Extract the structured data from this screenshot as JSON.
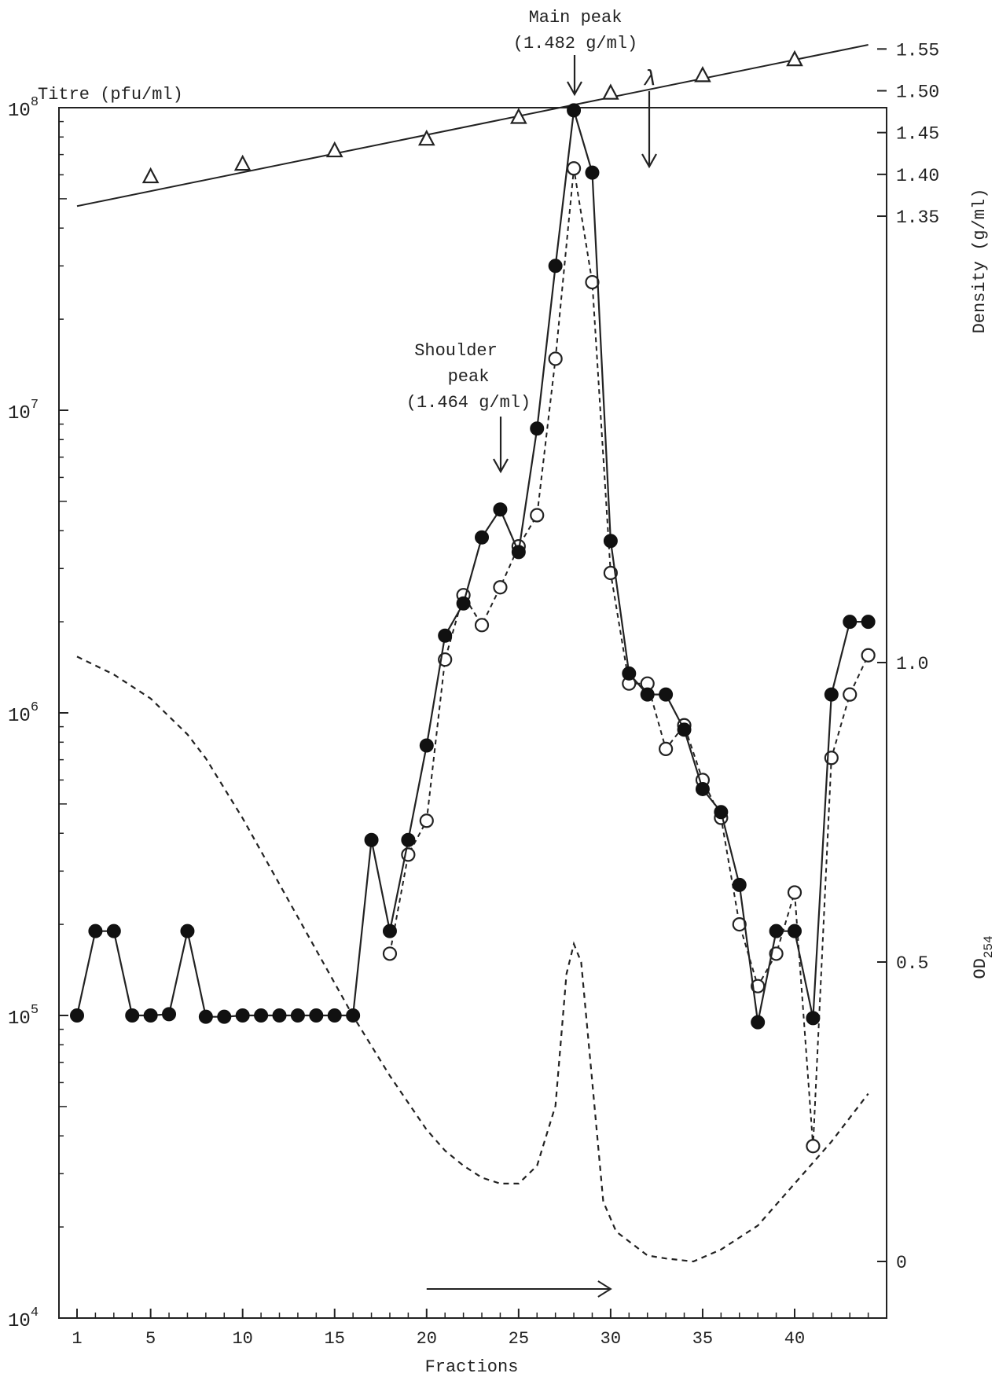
{
  "chart_data": {
    "type": "line",
    "x_label": "Fractions",
    "x_tick_labels": [
      "1",
      "5",
      "10",
      "15",
      "20",
      "25",
      "30",
      "35",
      "40"
    ],
    "x_ticks": [
      1,
      5,
      10,
      15,
      20,
      25,
      30,
      35,
      40
    ],
    "x_minor_ticks": [
      2,
      3,
      4,
      6,
      7,
      8,
      9,
      11,
      12,
      13,
      14,
      16,
      17,
      18,
      19,
      21,
      22,
      23,
      24,
      26,
      27,
      28,
      29,
      31,
      32,
      33,
      34,
      36,
      37,
      38,
      39,
      41,
      42,
      43,
      44
    ],
    "xlim": [
      0,
      45
    ],
    "y_left": {
      "label": "Titre (pfu/ml)",
      "scale": "log",
      "lim": [
        10000,
        100000000
      ],
      "ticks": [
        10000,
        100000,
        1000000,
        10000000,
        100000000
      ],
      "tick_labels": [
        {
          "base": "10",
          "exp": "4"
        },
        {
          "base": "10",
          "exp": "5"
        },
        {
          "base": "10",
          "exp": "6"
        },
        {
          "base": "10",
          "exp": "7"
        },
        {
          "base": "10",
          "exp": "8"
        }
      ]
    },
    "y_density": {
      "label": "Density (g/ml)",
      "ticks": [
        1.35,
        1.4,
        1.45,
        1.5,
        1.55
      ],
      "tick_labels": [
        "1.35",
        "1.40",
        "1.45",
        "1.50",
        "1.55"
      ]
    },
    "y_od": {
      "label": {
        "base": "OD",
        "sub": "254"
      },
      "lim": [
        -0.1,
        1.3
      ],
      "ticks": [
        0,
        0.5,
        1.0
      ],
      "tick_labels": [
        "0",
        "0.5",
        "1.0"
      ]
    },
    "series": [
      {
        "marker": "filled-circle",
        "line": "solid",
        "axis": "titre",
        "points": [
          [
            1,
            100000
          ],
          [
            2,
            190000
          ],
          [
            3,
            190000
          ],
          [
            4,
            100000
          ],
          [
            5,
            100000
          ],
          [
            6,
            101000
          ],
          [
            7,
            190000
          ],
          [
            8,
            99000
          ],
          [
            9,
            99000
          ],
          [
            10,
            100000
          ],
          [
            11,
            100000
          ],
          [
            12,
            100000
          ],
          [
            13,
            100000
          ],
          [
            14,
            100000
          ],
          [
            15,
            100000
          ],
          [
            16,
            100000
          ],
          [
            17,
            380000
          ],
          [
            18,
            190000
          ],
          [
            19,
            380000
          ],
          [
            20,
            780000
          ],
          [
            21,
            1800000
          ],
          [
            22,
            2300000
          ],
          [
            23,
            3800000
          ],
          [
            24,
            4700000
          ],
          [
            25,
            3400000
          ],
          [
            26,
            8700000
          ],
          [
            27,
            30000000
          ],
          [
            28,
            98000000
          ],
          [
            29,
            61000000
          ],
          [
            30,
            3700000
          ],
          [
            31,
            1350000
          ],
          [
            32,
            1150000
          ],
          [
            33,
            1150000
          ],
          [
            34,
            880000
          ],
          [
            35,
            560000
          ],
          [
            36,
            470000
          ],
          [
            37,
            270000
          ],
          [
            38,
            95000
          ],
          [
            39,
            190000
          ],
          [
            40,
            190000
          ],
          [
            41,
            98000
          ],
          [
            42,
            1150000
          ],
          [
            43,
            2000000
          ],
          [
            44,
            2000000
          ]
        ]
      },
      {
        "marker": "open-circle",
        "line": "dashed",
        "axis": "titre",
        "points": [
          [
            18,
            160000
          ],
          [
            19,
            340000
          ],
          [
            20,
            440000
          ],
          [
            21,
            1500000
          ],
          [
            22,
            2450000
          ],
          [
            23,
            1950000
          ],
          [
            24,
            2600000
          ],
          [
            25,
            3550000
          ],
          [
            26,
            4500000
          ],
          [
            27,
            14800000
          ],
          [
            28,
            63000000
          ],
          [
            29,
            26500000
          ],
          [
            30,
            2900000
          ],
          [
            31,
            1250000
          ],
          [
            32,
            1250000
          ],
          [
            33,
            760000
          ],
          [
            34,
            910000
          ],
          [
            35,
            600000
          ],
          [
            36,
            450000
          ],
          [
            37,
            200000
          ],
          [
            38,
            125000
          ],
          [
            39,
            160000
          ],
          [
            40,
            255000
          ],
          [
            41,
            37000
          ],
          [
            42,
            710000
          ],
          [
            43,
            1150000
          ],
          [
            44,
            1550000
          ]
        ]
      },
      {
        "marker": "open-triangle",
        "line": "solid-fit",
        "axis": "density",
        "points": [
          [
            5,
            1.397
          ],
          [
            10,
            1.412
          ],
          [
            15,
            1.428
          ],
          [
            20,
            1.442
          ],
          [
            25,
            1.468
          ],
          [
            30,
            1.497
          ],
          [
            35,
            1.518
          ],
          [
            40,
            1.537
          ]
        ],
        "fit_line": [
          [
            1,
            1.362
          ],
          [
            44,
            1.555
          ]
        ]
      },
      {
        "marker": "none",
        "line": "dashed",
        "axis": "od",
        "points": [
          [
            1,
            1.01
          ],
          [
            3,
            0.98
          ],
          [
            5,
            0.94
          ],
          [
            7,
            0.88
          ],
          [
            8,
            0.84
          ],
          [
            10,
            0.74
          ],
          [
            12,
            0.63
          ],
          [
            14,
            0.52
          ],
          [
            16,
            0.41
          ],
          [
            18,
            0.31
          ],
          [
            20,
            0.22
          ],
          [
            21,
            0.185
          ],
          [
            22,
            0.16
          ],
          [
            23,
            0.14
          ],
          [
            24,
            0.13
          ],
          [
            25,
            0.13
          ],
          [
            26,
            0.16
          ],
          [
            27,
            0.26
          ],
          [
            27.6,
            0.48
          ],
          [
            28,
            0.53
          ],
          [
            28.4,
            0.5
          ],
          [
            29,
            0.3
          ],
          [
            29.6,
            0.1
          ],
          [
            30.3,
            0.05
          ],
          [
            32,
            0.01
          ],
          [
            33,
            0.005
          ],
          [
            34.5,
            0.0
          ],
          [
            36,
            0.02
          ],
          [
            38,
            0.06
          ],
          [
            40,
            0.13
          ],
          [
            42,
            0.2
          ],
          [
            44,
            0.28
          ]
        ]
      }
    ],
    "annotations": {
      "main_peak": {
        "lines": [
          "Main peak",
          "(1.482 g/ml)"
        ],
        "x": 28
      },
      "shoulder_peak": {
        "lines": [
          "Shoulder",
          "peak",
          "(1.464 g/ml)"
        ],
        "x": 24
      },
      "lambda_marker": {
        "text": "λ",
        "x": 32
      },
      "direction_arrow": {
        "from": 20,
        "to": 30
      }
    }
  }
}
